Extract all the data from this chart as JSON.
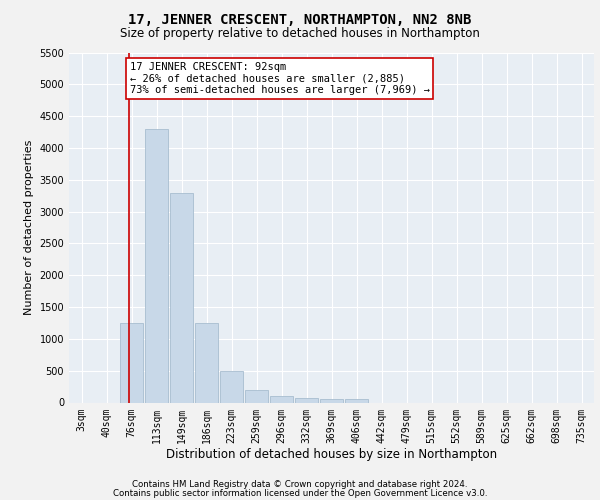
{
  "title": "17, JENNER CRESCENT, NORTHAMPTON, NN2 8NB",
  "subtitle": "Size of property relative to detached houses in Northampton",
  "xlabel": "Distribution of detached houses by size in Northampton",
  "ylabel": "Number of detached properties",
  "footnote1": "Contains HM Land Registry data © Crown copyright and database right 2024.",
  "footnote2": "Contains public sector information licensed under the Open Government Licence v3.0.",
  "categories": [
    "3sqm",
    "40sqm",
    "76sqm",
    "113sqm",
    "149sqm",
    "186sqm",
    "223sqm",
    "259sqm",
    "296sqm",
    "332sqm",
    "369sqm",
    "406sqm",
    "442sqm",
    "479sqm",
    "515sqm",
    "552sqm",
    "589sqm",
    "625sqm",
    "662sqm",
    "698sqm",
    "735sqm"
  ],
  "values": [
    0,
    0,
    1250,
    4300,
    3300,
    1250,
    500,
    200,
    100,
    75,
    50,
    50,
    0,
    0,
    0,
    0,
    0,
    0,
    0,
    0,
    0
  ],
  "bar_color": "#c8d8e8",
  "bar_edge_color": "#a8bdd0",
  "vline_x_index": 1.88,
  "vline_color": "#cc0000",
  "annotation_text": "17 JENNER CRESCENT: 92sqm\n← 26% of detached houses are smaller (2,885)\n73% of semi-detached houses are larger (7,969) →",
  "annotation_box_facecolor": "#ffffff",
  "annotation_box_edgecolor": "#cc0000",
  "ylim": [
    0,
    5500
  ],
  "yticks": [
    0,
    500,
    1000,
    1500,
    2000,
    2500,
    3000,
    3500,
    4000,
    4500,
    5000,
    5500
  ],
  "bg_color": "#e8eef4",
  "grid_color": "#ffffff",
  "fig_bg": "#f2f2f2",
  "title_fontsize": 10,
  "subtitle_fontsize": 8.5,
  "xlabel_fontsize": 8.5,
  "ylabel_fontsize": 8,
  "tick_fontsize": 7,
  "annot_fontsize": 7.5,
  "footnote_fontsize": 6.2
}
